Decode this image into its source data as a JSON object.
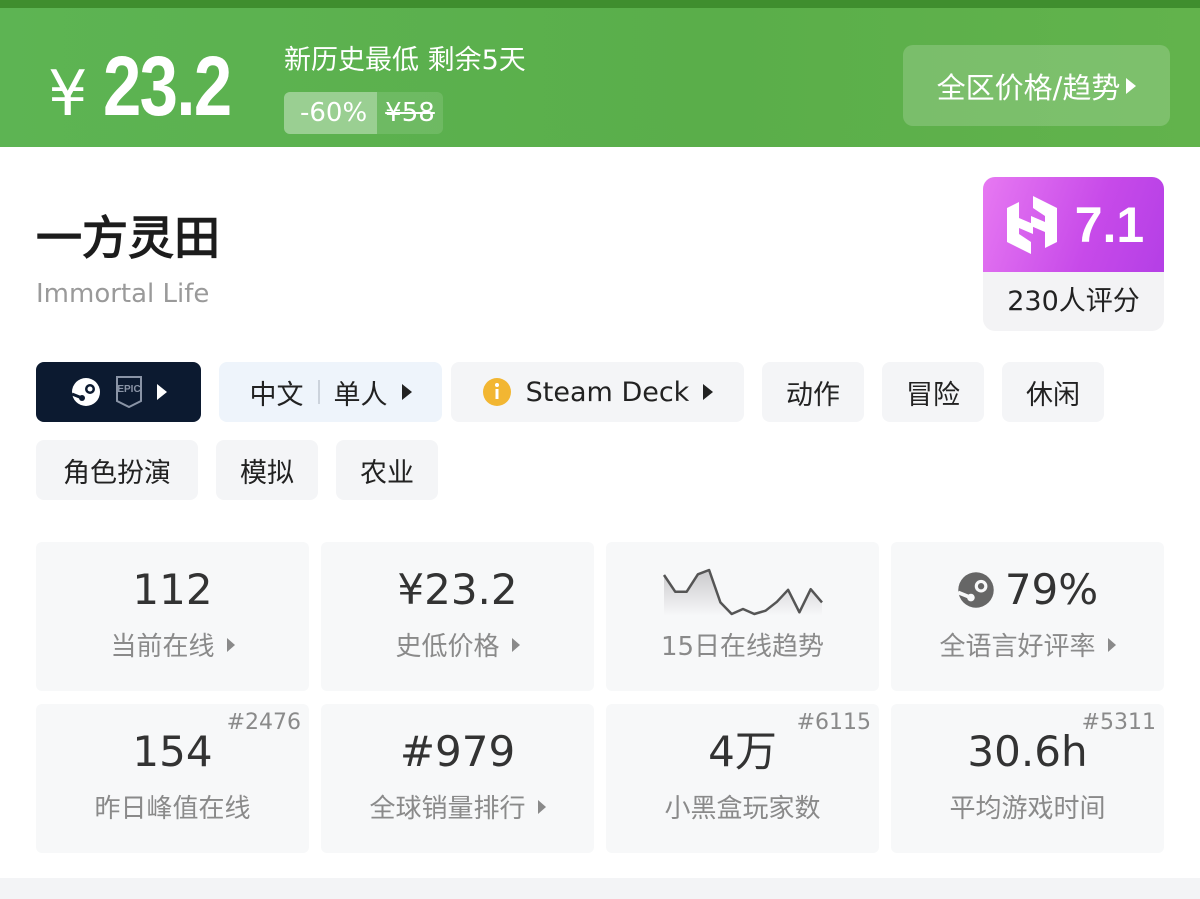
{
  "banner": {
    "currency": "¥",
    "price": "23.2",
    "note": "新历史最低 剩余5天",
    "discount": "-60%",
    "original_price": "¥58",
    "region_button": "全区价格/趋势",
    "color": "#5cb04f"
  },
  "game": {
    "title": "一方灵田",
    "subtitle": "Immortal Life"
  },
  "score": {
    "value": "7.1",
    "count": "230人评分",
    "color": "#c74ae9"
  },
  "tags": {
    "platforms": [
      "steam-icon",
      "epic-games-icon"
    ],
    "language": "中文",
    "players": "单人",
    "steam_deck": "Steam Deck",
    "genres": [
      "动作",
      "冒险",
      "休闲",
      "角色扮演",
      "模拟",
      "农业"
    ]
  },
  "stats": [
    {
      "value": "112",
      "label": "当前在线",
      "arrow": true
    },
    {
      "value": "¥23.2",
      "label": "史低价格",
      "arrow": true
    },
    {
      "value": "",
      "label": "15日在线趋势",
      "trend": [
        133,
        82,
        82,
        135,
        148,
        50,
        15,
        30,
        15,
        25,
        52,
        88,
        20,
        90,
        50
      ]
    },
    {
      "value": "79%",
      "label": "全语言好评率",
      "arrow": true,
      "icon": "steam-icon"
    },
    {
      "value": "154",
      "label": "昨日峰值在线",
      "rank": "#2476"
    },
    {
      "value": "#979",
      "label": "全球销量排行",
      "arrow": true
    },
    {
      "value": "4万",
      "label": "小黑盒玩家数",
      "rank": "#6115"
    },
    {
      "value": "30.6h",
      "label": "平均游戏时间",
      "rank": "#5311"
    }
  ]
}
